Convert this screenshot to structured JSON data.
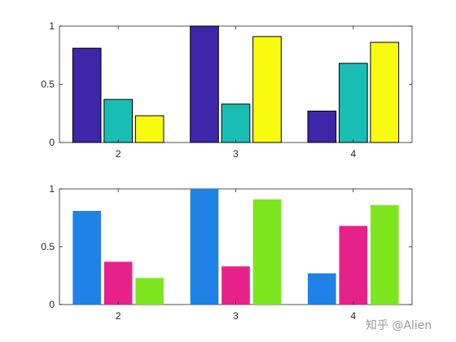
{
  "chart_data": [
    {
      "type": "bar",
      "categories": [
        "2",
        "3",
        "4"
      ],
      "series": [
        {
          "values": [
            0.81,
            1.0,
            0.27
          ],
          "color": "#3e26a8"
        },
        {
          "values": [
            0.37,
            0.33,
            0.68
          ],
          "color": "#19bfb5"
        },
        {
          "values": [
            0.23,
            0.91,
            0.86
          ],
          "color": "#f9fb0e"
        }
      ],
      "ylim": [
        0,
        1
      ],
      "yticks": [
        0,
        0.5,
        1
      ],
      "ytick_labels": [
        "0",
        "0.5",
        "1"
      ],
      "bar_edge": true,
      "grid": false,
      "legend": false
    },
    {
      "type": "bar",
      "categories": [
        "2",
        "3",
        "4"
      ],
      "series": [
        {
          "values": [
            0.81,
            1.0,
            0.27
          ],
          "color": "#1e82e6"
        },
        {
          "values": [
            0.37,
            0.33,
            0.68
          ],
          "color": "#e6228a"
        },
        {
          "values": [
            0.23,
            0.91,
            0.86
          ],
          "color": "#7ee61e"
        }
      ],
      "ylim": [
        0,
        1
      ],
      "yticks": [
        0,
        0.5,
        1
      ],
      "ytick_labels": [
        "0",
        "0.5",
        "1"
      ],
      "bar_edge": false,
      "grid": false,
      "legend": false
    }
  ],
  "watermark": {
    "text": "知乎 @Alien"
  }
}
